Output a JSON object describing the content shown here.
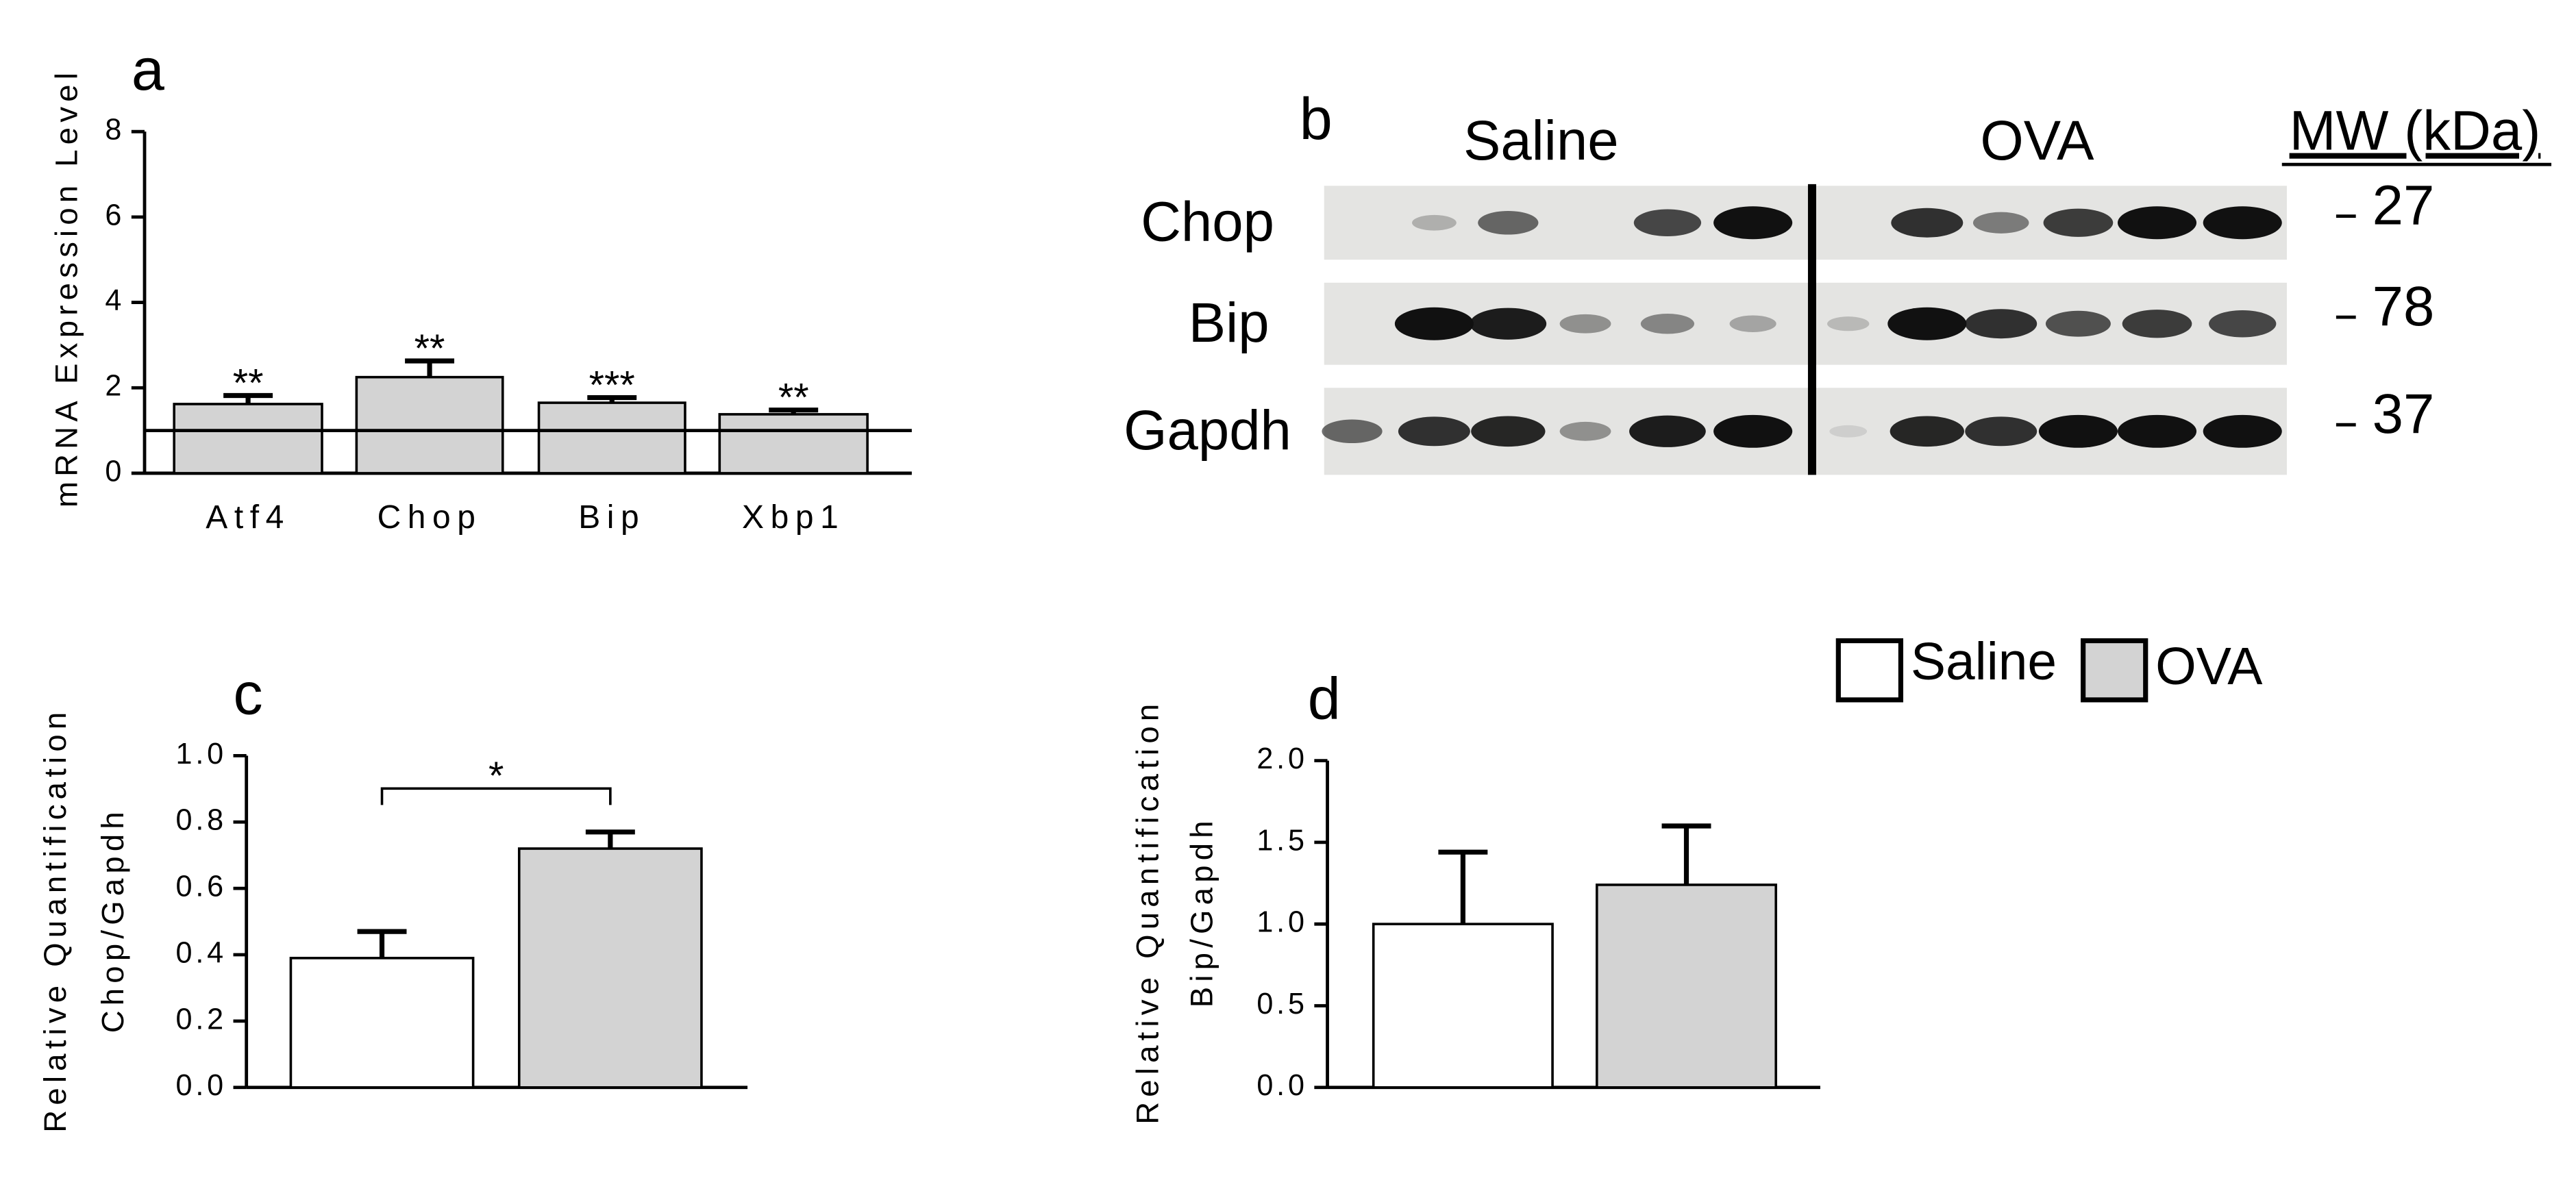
{
  "chart_data": [
    {
      "type": "bar",
      "label": "a",
      "ylabel": [
        "mRNA Expression Level"
      ],
      "categories": [
        "Atf4",
        "Chop",
        "Bip",
        "Xbp1"
      ],
      "values": [
        1.62,
        2.25,
        1.65,
        1.38
      ],
      "errors": [
        0.2,
        0.38,
        0.12,
        0.1
      ],
      "annotations": [
        "**",
        "**",
        "***",
        "**"
      ],
      "color": "#d3d3d3",
      "reference_line": 1,
      "ylim": [
        0,
        8
      ],
      "yticks": [
        0,
        2,
        4,
        6,
        8
      ]
    },
    {
      "type": "blot",
      "label": "b",
      "groups": [
        "Saline",
        "OVA"
      ],
      "mw_title": "MW (kDa)",
      "rows": [
        {
          "name": "Chop",
          "mw": "27"
        },
        {
          "name": "Bip",
          "mw": "78"
        },
        {
          "name": "Gapdh",
          "mw": "37"
        }
      ]
    },
    {
      "type": "bar",
      "label": "c",
      "ylabel": [
        "Relative Quantification",
        "Chop/Gapdh"
      ],
      "values": [
        0.39,
        0.72
      ],
      "errors": [
        0.08,
        0.05
      ],
      "significance": "*",
      "ylim": [
        0,
        1
      ],
      "yticks": [
        {
          "value": 0,
          "label": "0.0"
        },
        0.2,
        0.4,
        0.6,
        0.8,
        {
          "value": 1,
          "label": "1.0"
        }
      ]
    },
    {
      "type": "bar",
      "label": "d",
      "ylabel": [
        "Relative Quantification",
        "Bip/Gapdh"
      ],
      "values": [
        1.0,
        1.24
      ],
      "errors": [
        0.44,
        0.36
      ],
      "ylim": [
        0,
        2
      ],
      "yticks": [
        {
          "value": 0,
          "label": "0.0"
        },
        0.5,
        {
          "value": 1,
          "label": "1.0"
        },
        1.5,
        {
          "value": 2,
          "label": "2.0"
        }
      ]
    }
  ],
  "legend": [
    {
      "name": "Saline",
      "color": "#ffffff"
    },
    {
      "name": "OVA",
      "color": "#d3d3d3"
    }
  ]
}
